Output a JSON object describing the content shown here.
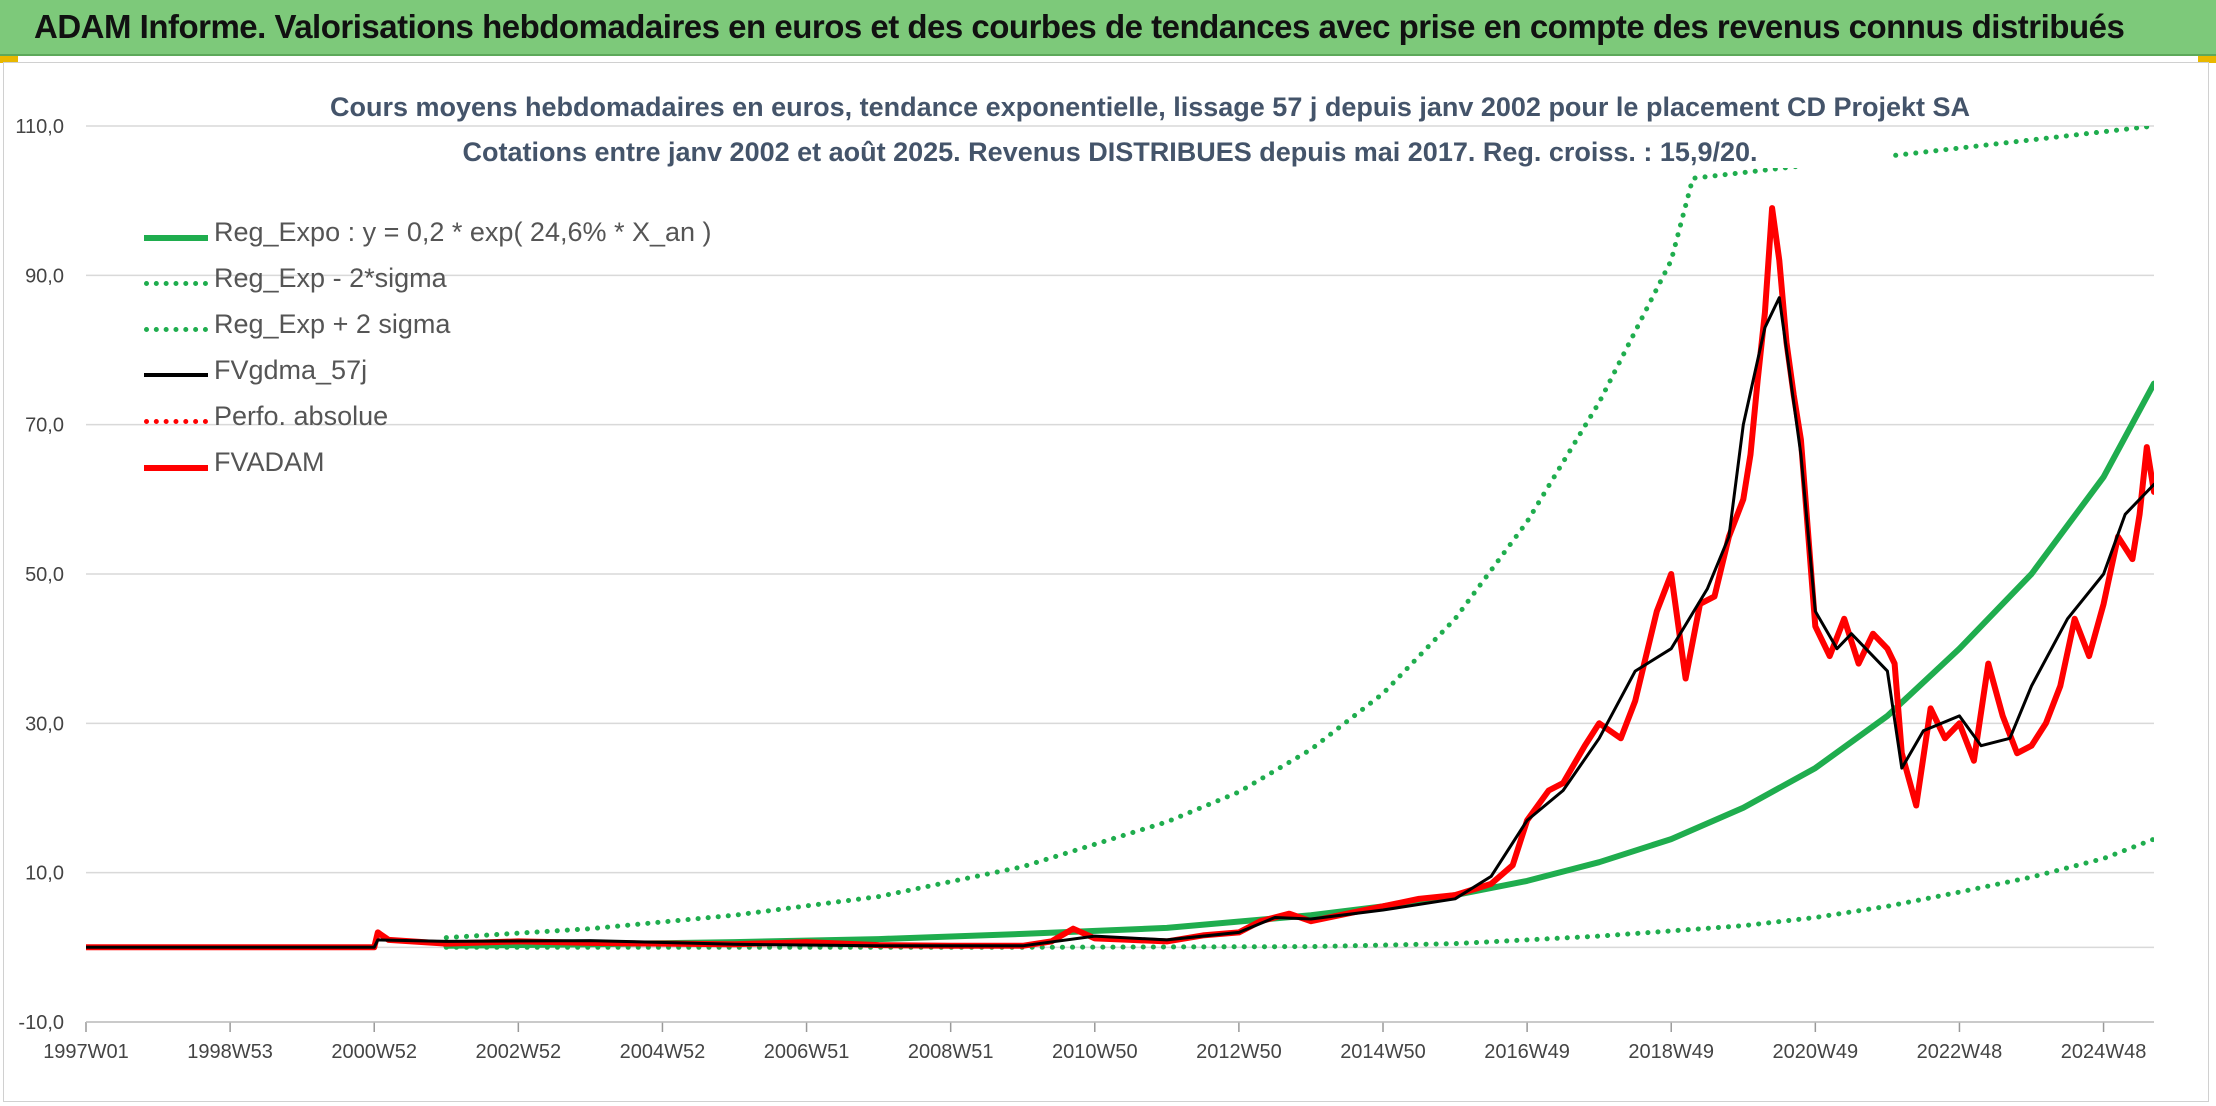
{
  "banner": {
    "title": "ADAM Informe. Valorisations hebdomadaires en euros et des courbes de tendances avec prise en compte des revenus connus distribués"
  },
  "chart_data": {
    "type": "line",
    "title": "Cours moyens hebdomadaires en euros, tendance exponentielle, lissage 57 j depuis janv 2002 pour le placement CD Projekt SA",
    "subtitle": "Cotations entre janv 2002 et août 2025. Revenus DISTRIBUES depuis mai 2017. Reg. croiss. : 15,9/20.",
    "ylim": [
      -10,
      110
    ],
    "y_ticks": [
      "110,0",
      "90,0",
      "70,0",
      "50,0",
      "30,0",
      "10,0",
      "-10,0"
    ],
    "y_tick_values": [
      110,
      90,
      70,
      50,
      30,
      10,
      -10
    ],
    "x_ticks": [
      "1997W01",
      "1998W53",
      "2000W52",
      "2002W52",
      "2004W52",
      "2006W51",
      "2008W51",
      "2010W50",
      "2012W50",
      "2014W50",
      "2016W49",
      "2018W49",
      "2020W49",
      "2022W48",
      "2024W48"
    ],
    "x_tick_values": [
      1997.0,
      1999.0,
      2001.0,
      2003.0,
      2005.0,
      2007.0,
      2009.0,
      2011.0,
      2013.0,
      2015.0,
      2017.0,
      2019.0,
      2021.0,
      2023.0,
      2025.0
    ],
    "xlim": [
      1997.0,
      2025.7
    ],
    "grid": "horizontal",
    "legend_position": "top-left",
    "series": [
      {
        "name": "Reg_Expo : y = 0,2 * exp( 24,6% *  X_an )",
        "color": "#1fad4e",
        "style": "solid",
        "x": [
          2002.0,
          2004.0,
          2006.0,
          2008.0,
          2010.0,
          2012.0,
          2014.0,
          2015.0,
          2016.0,
          2017.0,
          2018.0,
          2019.0,
          2020.0,
          2021.0,
          2022.0,
          2023.0,
          2024.0,
          2025.0,
          2025.7
        ],
        "y": [
          0.2,
          0.4,
          0.7,
          1.1,
          1.8,
          2.6,
          4.3,
          5.5,
          7.0,
          8.9,
          11.4,
          14.5,
          18.7,
          24.0,
          31.0,
          40.0,
          50.0,
          63.0,
          75.5
        ]
      },
      {
        "name": "Reg_Exp - 2*sigma",
        "color": "#1fad4e",
        "style": "dotted",
        "x": [
          2002.0,
          2006.0,
          2010.0,
          2014.0,
          2016.0,
          2018.0,
          2020.0,
          2021.0,
          2022.0,
          2023.0,
          2024.0,
          2025.0,
          2025.7
        ],
        "y": [
          0.0,
          0.0,
          0.0,
          0.1,
          0.5,
          1.5,
          2.9,
          4.0,
          5.5,
          7.4,
          9.4,
          11.9,
          14.5
        ]
      },
      {
        "name": "Reg_Exp + 2 sigma",
        "color": "#1fad4e",
        "style": "dotted",
        "x": [
          2002.0,
          2004.0,
          2006.0,
          2008.0,
          2010.0,
          2012.0,
          2013.0,
          2014.0,
          2015.0,
          2016.0,
          2017.0,
          2018.0,
          2019.0,
          2019.3,
          2025.7
        ],
        "y": [
          1.3,
          2.5,
          4.3,
          6.8,
          10.8,
          16.8,
          20.8,
          26.5,
          34.0,
          44.0,
          57.0,
          73.0,
          92.0,
          103.0,
          110.0
        ]
      },
      {
        "name": "FVgdma_57j",
        "color": "#000000",
        "style": "solid",
        "x": [
          1997.0,
          2001.0,
          2001.05,
          2002.0,
          2004.0,
          2006.0,
          2008.0,
          2010.0,
          2011.0,
          2012.0,
          2013.0,
          2013.5,
          2014.0,
          2015.0,
          2016.0,
          2016.5,
          2017.0,
          2017.5,
          2018.0,
          2018.5,
          2019.0,
          2019.5,
          2019.8,
          2020.0,
          2020.3,
          2020.5,
          2020.8,
          2021.0,
          2021.3,
          2021.5,
          2022.0,
          2022.2,
          2022.5,
          2023.0,
          2023.3,
          2023.7,
          2024.0,
          2024.5,
          2025.0,
          2025.3,
          2025.7
        ],
        "y": [
          0.0,
          0.0,
          1.0,
          0.8,
          0.9,
          0.4,
          0.2,
          0.2,
          1.5,
          1.0,
          2.0,
          4.0,
          3.8,
          5.0,
          6.5,
          9.5,
          17.0,
          21.0,
          28.0,
          37.0,
          40.0,
          48.0,
          55.0,
          70.0,
          83.0,
          87.0,
          66.0,
          45.0,
          40.0,
          42.0,
          37.0,
          24.0,
          29.0,
          31.0,
          27.0,
          28.0,
          35.0,
          44.0,
          50.0,
          58.0,
          62.0
        ]
      },
      {
        "name": "Perfo. absolue",
        "color": "#ff0000",
        "style": "dotted",
        "x": [],
        "y": []
      },
      {
        "name": "FVADAM",
        "color": "#ff0000",
        "style": "solid",
        "x": [
          1997.0,
          2001.0,
          2001.05,
          2001.2,
          2002.0,
          2003.0,
          2004.0,
          2005.0,
          2006.0,
          2007.0,
          2008.0,
          2009.0,
          2010.0,
          2010.4,
          2010.7,
          2011.0,
          2011.5,
          2012.0,
          2012.5,
          2013.0,
          2013.3,
          2013.7,
          2014.0,
          2014.5,
          2015.0,
          2015.5,
          2016.0,
          2016.5,
          2016.8,
          2017.0,
          2017.3,
          2017.5,
          2017.8,
          2018.0,
          2018.3,
          2018.5,
          2018.8,
          2019.0,
          2019.2,
          2019.4,
          2019.6,
          2019.8,
          2020.0,
          2020.1,
          2020.2,
          2020.3,
          2020.4,
          2020.5,
          2020.6,
          2020.7,
          2020.8,
          2021.0,
          2021.2,
          2021.4,
          2021.6,
          2021.8,
          2022.0,
          2022.1,
          2022.2,
          2022.4,
          2022.6,
          2022.8,
          2023.0,
          2023.2,
          2023.4,
          2023.6,
          2023.8,
          2024.0,
          2024.2,
          2024.4,
          2024.6,
          2024.8,
          2025.0,
          2025.2,
          2025.4,
          2025.5,
          2025.6,
          2025.7
        ],
        "y": [
          0.0,
          0.0,
          2.0,
          1.0,
          0.5,
          0.8,
          0.6,
          0.5,
          0.4,
          0.7,
          0.3,
          0.2,
          0.2,
          0.8,
          2.5,
          1.2,
          1.0,
          0.8,
          1.6,
          2.0,
          3.5,
          4.5,
          3.5,
          4.5,
          5.5,
          6.5,
          7.0,
          8.5,
          11.0,
          17.0,
          21.0,
          22.0,
          27.0,
          30.0,
          28.0,
          33.0,
          45.0,
          50.0,
          36.0,
          46.0,
          47.0,
          55.0,
          60.0,
          66.0,
          76.0,
          85.0,
          99.0,
          92.0,
          81.0,
          74.0,
          68.0,
          43.0,
          39.0,
          44.0,
          38.0,
          42.0,
          40.0,
          38.0,
          26.0,
          19.0,
          32.0,
          28.0,
          30.0,
          25.0,
          38.0,
          31.0,
          26.0,
          27.0,
          30.0,
          35.0,
          44.0,
          39.0,
          46.0,
          55.0,
          52.0,
          58.0,
          67.0,
          61.0
        ]
      }
    ]
  }
}
